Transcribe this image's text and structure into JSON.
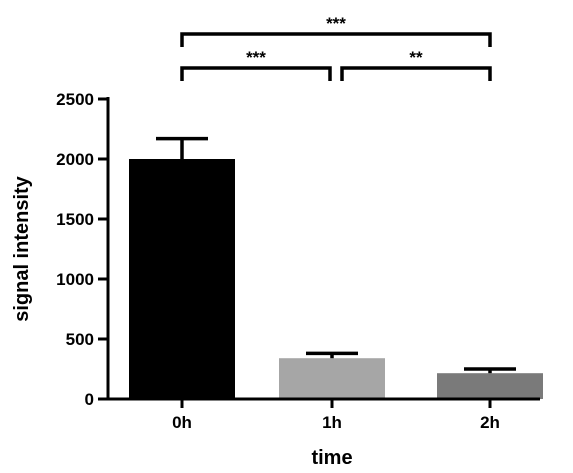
{
  "chart_data": {
    "type": "bar",
    "title": "",
    "xlabel": "time",
    "ylabel": "signal intensity",
    "categories": [
      "0h",
      "1h",
      "2h"
    ],
    "values": [
      2000,
      340,
      215
    ],
    "errors": [
      170,
      40,
      35
    ],
    "colors": [
      "#000000",
      "#a6a6a6",
      "#7a7a7a"
    ],
    "ylim": [
      0,
      2500
    ],
    "yticks": [
      0,
      500,
      1000,
      1500,
      2000,
      2500
    ],
    "grid": false,
    "significance": [
      {
        "from": 0,
        "to": 2,
        "label": "***",
        "level": 2500
      },
      {
        "from": 0,
        "to": 1,
        "label": "***",
        "level": 1
      },
      {
        "from": 1,
        "to": 2,
        "label": "**",
        "level": 1
      }
    ]
  }
}
